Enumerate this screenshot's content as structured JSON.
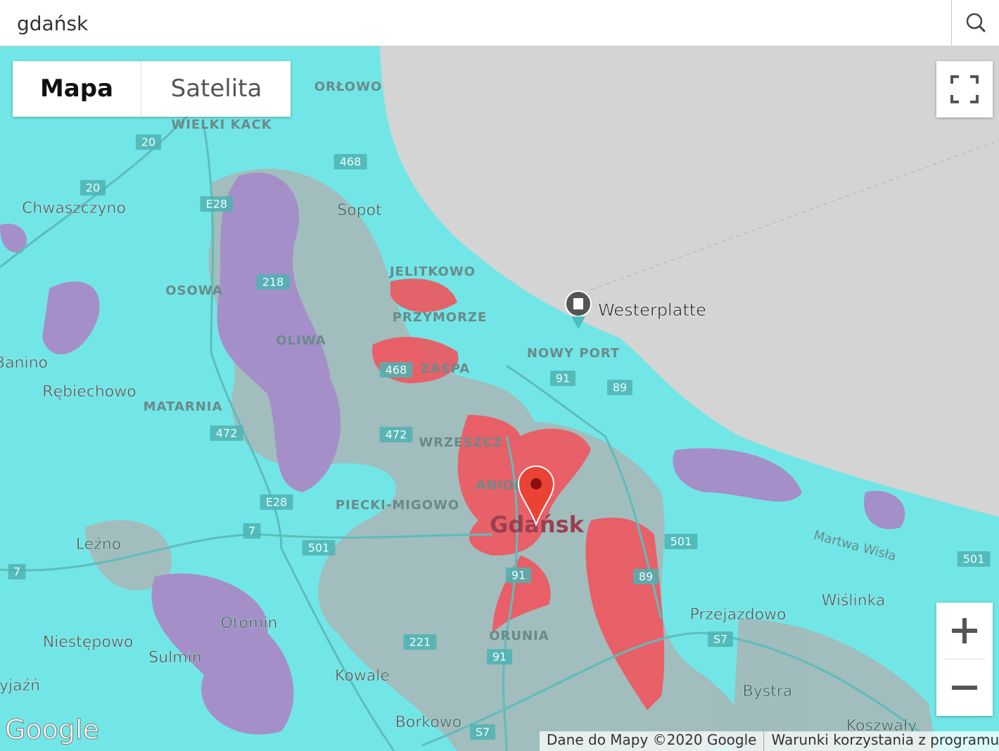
{
  "search": {
    "query": "gdańsk"
  },
  "map_type": {
    "options": [
      "Mapa",
      "Satelita"
    ]
  },
  "places": [
    "Chwaszczyno",
    "Sopot",
    "OSOWA",
    "OLIWA",
    "JELITKOWO",
    "PRZYMORZE",
    "Banino",
    "Rębiechowo",
    "MATARNIA",
    "ZASPA",
    "NOWY PORT",
    "WRZESZCZ",
    "ANIOŁ",
    "PIECKI-MIGOWO",
    "Gdańsk",
    "Leźno",
    "Otomin",
    "Niestępowo",
    "Sulmin",
    "Kowale",
    "Borkowo",
    "ORUNIA",
    "Przejazdowo",
    "Wiślinka",
    "Bystra",
    "Koszwały",
    "Martwa Wisła",
    "WIELKI KACK",
    "ORŁOWO",
    "yjaźń"
  ],
  "poi": "Westerplatte",
  "roads": [
    "20",
    "20",
    "E28",
    "468",
    "218",
    "468",
    "91",
    "89",
    "472",
    "472",
    "E28",
    "7",
    "501",
    "501",
    "501",
    "91",
    "89",
    "7",
    "221",
    "91",
    "S7",
    "S7"
  ],
  "logo": "Google",
  "attribution": [
    "Dane do Mapy ©2020 Google",
    "Warunki korzystania z programu"
  ]
}
